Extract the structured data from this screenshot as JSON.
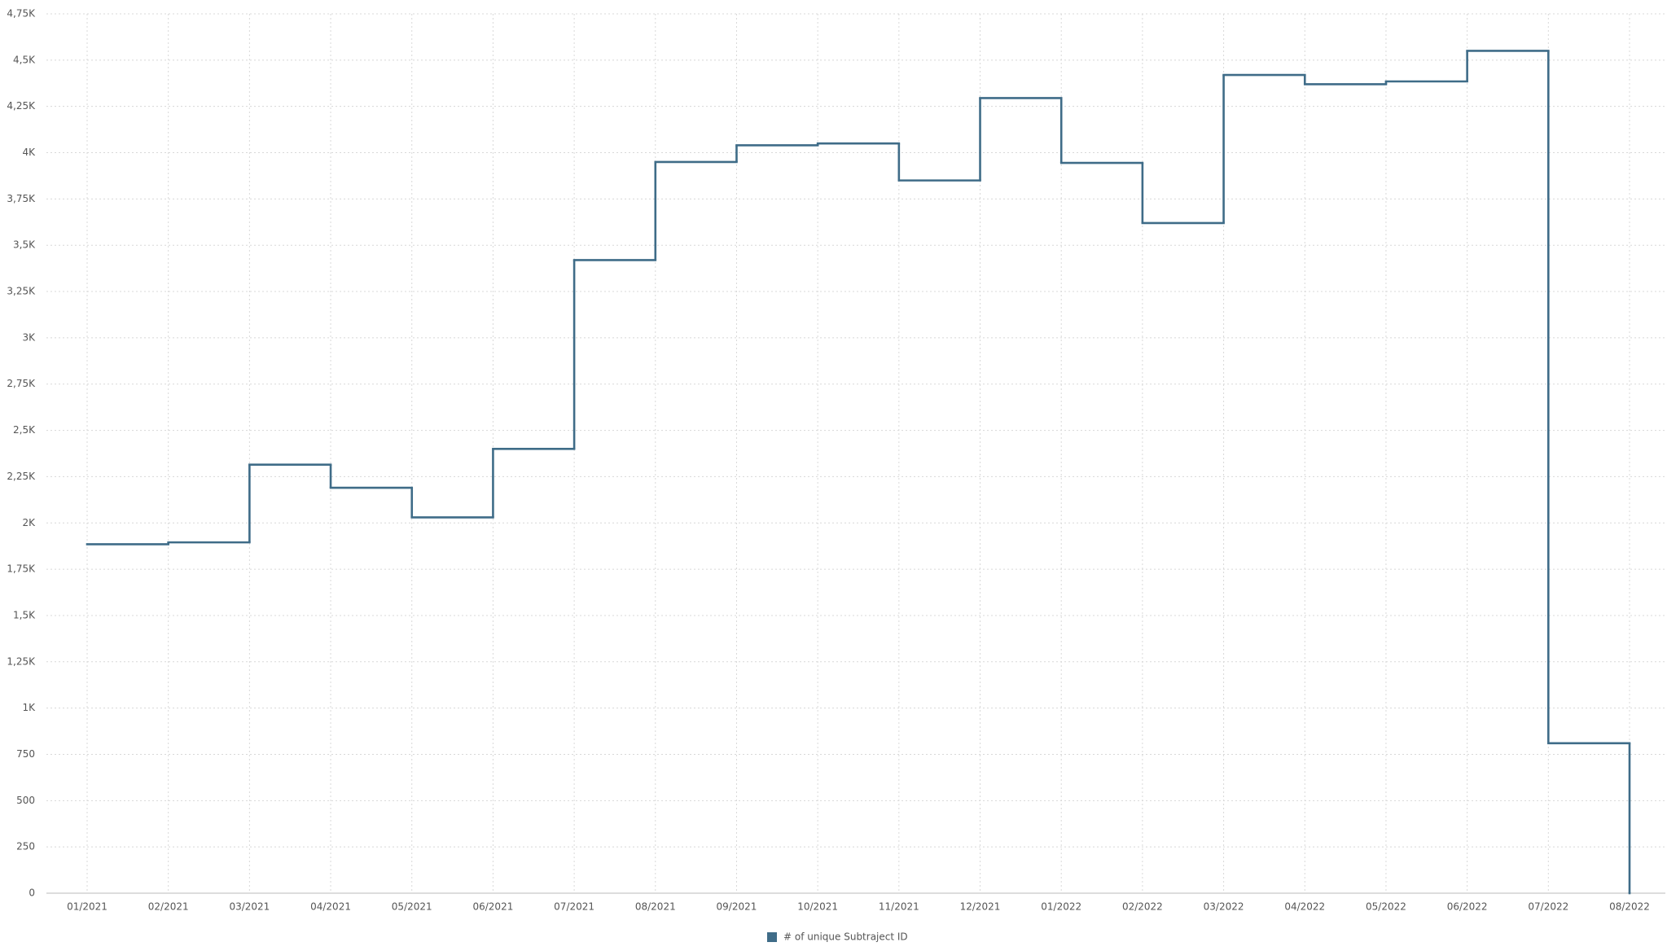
{
  "chart_data": {
    "type": "step",
    "x_label_style": "month",
    "categories": [
      "01/2021",
      "02/2021",
      "03/2021",
      "04/2021",
      "05/2021",
      "06/2021",
      "07/2021",
      "08/2021",
      "09/2021",
      "10/2021",
      "11/2021",
      "12/2021",
      "01/2022",
      "02/2022",
      "03/2022",
      "04/2022",
      "05/2022",
      "06/2022",
      "07/2022",
      "08/2022"
    ],
    "series": [
      {
        "name": "# of unique Subtraject ID",
        "color": "#3f6c88",
        "values": [
          1885,
          1895,
          2315,
          2190,
          2030,
          2400,
          3420,
          3950,
          4040,
          4050,
          3850,
          4295,
          3945,
          3620,
          4420,
          4370,
          4385,
          4550,
          810,
          0
        ]
      }
    ],
    "ylim": [
      0,
      4750
    ],
    "yticks": [
      0,
      250,
      500,
      750,
      {
        "value": 1000,
        "label": "1K"
      },
      {
        "value": 1250,
        "label": "1,25K"
      },
      {
        "value": 1500,
        "label": "1,5K"
      },
      {
        "value": 1750,
        "label": "1,75K"
      },
      {
        "value": 2000,
        "label": "2K"
      },
      {
        "value": 2250,
        "label": "2,25K"
      },
      {
        "value": 2500,
        "label": "2,5K"
      },
      {
        "value": 2750,
        "label": "2,75K"
      },
      {
        "value": 3000,
        "label": "3K"
      },
      {
        "value": 3250,
        "label": "3,25K"
      },
      {
        "value": 3500,
        "label": "3,5K"
      },
      {
        "value": 3750,
        "label": "3,75K"
      },
      {
        "value": 4000,
        "label": "4K"
      },
      {
        "value": 4250,
        "label": "4,25K"
      },
      {
        "value": 4500,
        "label": "4,5K"
      },
      {
        "value": 4750,
        "label": "4,75K"
      }
    ],
    "grid": true
  }
}
